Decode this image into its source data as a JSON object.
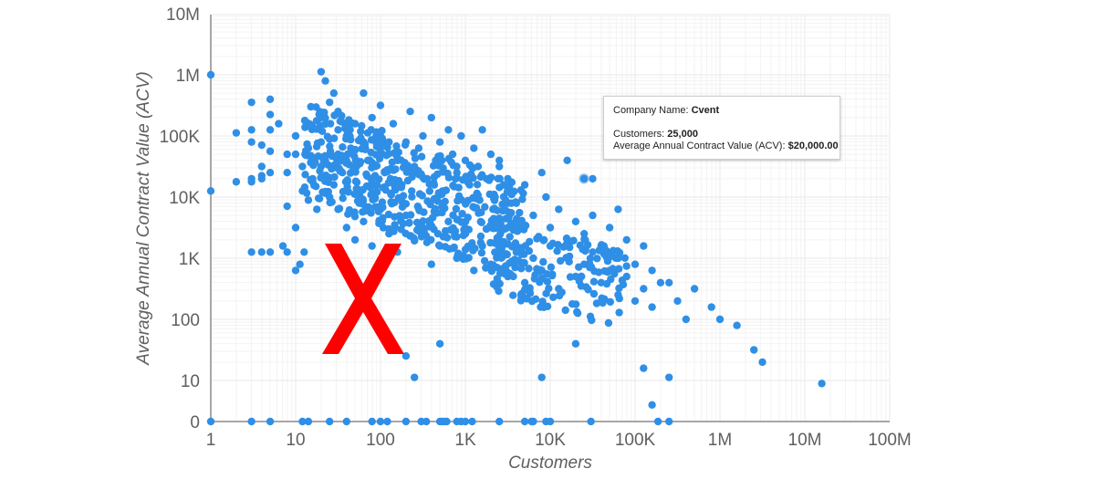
{
  "chart_data": {
    "type": "scatter",
    "title": "",
    "xlabel": "Customers",
    "ylabel": "Average Annual Contract Value (ACV)",
    "x_scale": "log",
    "y_scale": "log",
    "x_ticks": [
      "1",
      "10",
      "100",
      "1K",
      "10K",
      "100K",
      "1M",
      "10M",
      "100M"
    ],
    "y_ticks": [
      "0",
      "10",
      "100",
      "1K",
      "10K",
      "100K",
      "1M",
      "10M"
    ],
    "xlim": [
      1,
      100000000
    ],
    "ylim": [
      0,
      10000000
    ],
    "grid": true,
    "legend": null,
    "point_color": "#2f8fe6",
    "highlight_point": {
      "company": "Cvent",
      "customers": 25000,
      "acv": 20000
    },
    "points_log": [
      [
        0,
        6
      ],
      [
        0,
        4.1
      ],
      [
        0,
        0
      ],
      [
        0.48,
        0
      ],
      [
        0.7,
        0
      ],
      [
        1.08,
        0
      ],
      [
        1.15,
        0
      ],
      [
        1.4,
        0
      ],
      [
        1.6,
        0
      ],
      [
        1.9,
        0
      ],
      [
        2.0,
        0
      ],
      [
        2.08,
        0
      ],
      [
        2.3,
        0
      ],
      [
        2.48,
        0
      ],
      [
        2.54,
        0
      ],
      [
        2.7,
        0
      ],
      [
        2.72,
        0
      ],
      [
        2.75,
        0
      ],
      [
        2.78,
        0
      ],
      [
        2.9,
        0
      ],
      [
        2.95,
        0
      ],
      [
        3.0,
        0
      ],
      [
        3.08,
        0
      ],
      [
        3.4,
        0
      ],
      [
        3.7,
        0
      ],
      [
        3.78,
        0
      ],
      [
        3.8,
        0
      ],
      [
        3.95,
        0
      ],
      [
        4.0,
        0
      ],
      [
        4.48,
        0
      ],
      [
        5.27,
        0
      ],
      [
        5.4,
        0
      ],
      [
        0.3,
        5.05
      ],
      [
        0.48,
        5.55
      ],
      [
        0.48,
        5.1
      ],
      [
        0.48,
        4.9
      ],
      [
        0.6,
        4.85
      ],
      [
        0.6,
        4.5
      ],
      [
        0.6,
        4.35
      ],
      [
        0.6,
        4.3
      ],
      [
        0.7,
        5.6
      ],
      [
        0.7,
        5.35
      ],
      [
        0.7,
        5.1
      ],
      [
        0.7,
        4.75
      ],
      [
        0.7,
        4.4
      ],
      [
        0.8,
        5.2
      ],
      [
        0.9,
        4.7
      ],
      [
        0.9,
        4.4
      ],
      [
        0.9,
        3.85
      ],
      [
        1.0,
        5.0
      ],
      [
        1.0,
        4.7
      ],
      [
        1.0,
        3.5
      ],
      [
        1.08,
        4.5
      ],
      [
        1.08,
        4.1
      ],
      [
        1.15,
        5.2
      ],
      [
        1.15,
        4.8
      ],
      [
        1.15,
        3.95
      ],
      [
        0.48,
        3.1
      ],
      [
        0.6,
        3.1
      ],
      [
        0.7,
        3.1
      ],
      [
        0.85,
        3.2
      ],
      [
        0.9,
        3.1
      ],
      [
        1.0,
        2.8
      ],
      [
        1.05,
        2.9
      ],
      [
        1.1,
        3.1
      ],
      [
        0.3,
        4.25
      ],
      [
        0.48,
        4.3
      ],
      [
        0.48,
        4.25
      ],
      [
        1.2,
        4.3
      ],
      [
        1.25,
        3.8
      ],
      [
        1.3,
        6.05
      ],
      [
        1.35,
        5.9
      ],
      [
        1.4,
        5.55
      ],
      [
        1.45,
        5.7
      ],
      [
        1.3,
        5.3
      ],
      [
        1.3,
        4.9
      ],
      [
        1.3,
        4.5
      ],
      [
        1.35,
        4.6
      ],
      [
        1.4,
        4.0
      ],
      [
        1.4,
        4.95
      ],
      [
        1.45,
        4.2
      ],
      [
        1.5,
        5.4
      ],
      [
        1.5,
        5.1
      ],
      [
        1.5,
        4.7
      ],
      [
        1.55,
        4.4
      ],
      [
        1.6,
        5.0
      ],
      [
        1.6,
        4.6
      ],
      [
        1.6,
        4.1
      ],
      [
        1.65,
        4.8
      ],
      [
        1.7,
        5.2
      ],
      [
        1.7,
        4.5
      ],
      [
        1.75,
        3.9
      ],
      [
        1.8,
        4.9
      ],
      [
        1.8,
        5.7
      ],
      [
        1.85,
        4.6
      ],
      [
        1.9,
        5.3
      ],
      [
        1.9,
        4.3
      ],
      [
        1.95,
        5.0
      ],
      [
        2.0,
        4.7
      ],
      [
        2.0,
        5.5
      ],
      [
        2.05,
        4.4
      ],
      [
        2.1,
        4.9
      ],
      [
        2.15,
        5.2
      ],
      [
        2.2,
        4.6
      ],
      [
        2.25,
        4.2
      ],
      [
        2.3,
        4.9
      ],
      [
        2.35,
        5.4
      ],
      [
        2.4,
        4.5
      ],
      [
        2.45,
        4.8
      ],
      [
        2.5,
        5.0
      ],
      [
        2.55,
        4.3
      ],
      [
        2.6,
        5.3
      ],
      [
        2.65,
        4.6
      ],
      [
        2.7,
        4.9
      ],
      [
        2.75,
        4.1
      ],
      [
        2.8,
        5.1
      ],
      [
        2.85,
        4.7
      ],
      [
        2.9,
        4.4
      ],
      [
        2.95,
        5.0
      ],
      [
        3.0,
        4.6
      ],
      [
        3.05,
        4.2
      ],
      [
        3.1,
        4.8
      ],
      [
        3.15,
        4.5
      ],
      [
        3.2,
        5.1
      ],
      [
        3.25,
        4.3
      ],
      [
        3.3,
        4.7
      ],
      [
        3.35,
        4.0
      ],
      [
        3.4,
        4.6
      ],
      [
        3.45,
        4.2
      ],
      [
        3.5,
        3.9
      ],
      [
        1.5,
        3.8
      ],
      [
        1.6,
        3.5
      ],
      [
        1.7,
        3.3
      ],
      [
        1.8,
        3.6
      ],
      [
        1.9,
        3.2
      ],
      [
        2.0,
        3.8
      ],
      [
        2.1,
        3.4
      ],
      [
        2.2,
        3.1
      ],
      [
        2.3,
        3.7
      ],
      [
        2.4,
        3.3
      ],
      [
        2.5,
        3.5
      ],
      [
        2.6,
        2.9
      ],
      [
        2.7,
        3.2
      ],
      [
        2.8,
        3.6
      ],
      [
        2.9,
        3.0
      ],
      [
        3.0,
        3.4
      ],
      [
        3.1,
        2.8
      ],
      [
        3.2,
        3.2
      ],
      [
        3.3,
        2.9
      ],
      [
        3.4,
        3.3
      ],
      [
        3.5,
        2.7
      ],
      [
        3.6,
        3.1
      ],
      [
        3.7,
        2.6
      ],
      [
        3.8,
        3.0
      ],
      [
        3.9,
        2.8
      ],
      [
        4.0,
        3.2
      ],
      [
        4.1,
        2.5
      ],
      [
        4.2,
        3.0
      ],
      [
        4.3,
        2.7
      ],
      [
        4.4,
        2.9
      ],
      [
        4.5,
        3.1
      ],
      [
        4.6,
        2.6
      ],
      [
        4.7,
        2.8
      ],
      [
        4.8,
        2.4
      ],
      [
        4.9,
        2.7
      ],
      [
        5.0,
        2.3
      ],
      [
        5.1,
        2.5
      ],
      [
        5.2,
        2.2
      ],
      [
        5.4,
        2.6
      ],
      [
        5.5,
        2.3
      ],
      [
        5.6,
        2.0
      ],
      [
        5.7,
        2.5
      ],
      [
        5.9,
        2.2
      ],
      [
        6.0,
        2.0
      ],
      [
        6.2,
        1.9
      ],
      [
        6.4,
        1.5
      ],
      [
        6.5,
        1.3
      ],
      [
        7.2,
        0.95
      ],
      [
        3.4,
        4.5
      ],
      [
        3.5,
        4.3
      ],
      [
        3.6,
        3.9
      ],
      [
        3.7,
        4.2
      ],
      [
        3.8,
        3.7
      ],
      [
        3.9,
        4.4
      ],
      [
        4.0,
        3.5
      ],
      [
        4.1,
        3.8
      ],
      [
        4.2,
        3.3
      ],
      [
        4.3,
        3.6
      ],
      [
        4.4,
        3.4
      ],
      [
        4.5,
        3.7
      ],
      [
        4.6,
        3.2
      ],
      [
        4.7,
        3.5
      ],
      [
        4.8,
        3.0
      ],
      [
        4.9,
        3.3
      ],
      [
        5.0,
        2.9
      ],
      [
        5.1,
        3.2
      ],
      [
        5.2,
        2.8
      ],
      [
        5.3,
        2.6
      ],
      [
        4.5,
        4.3
      ],
      [
        4.8,
        3.8
      ],
      [
        4.2,
        4.6
      ],
      [
        3.95,
        4.0
      ],
      [
        2.3,
        1.4
      ],
      [
        2.4,
        1.05
      ],
      [
        2.7,
        1.6
      ],
      [
        3.9,
        1.05
      ],
      [
        4.3,
        1.6
      ],
      [
        5.1,
        1.2
      ],
      [
        5.2,
        0.6
      ],
      [
        5.4,
        1.05
      ]
    ]
  },
  "tooltip": {
    "company_label": "Company Name: ",
    "company_value": "Cvent",
    "customers_label": "Customers: ",
    "customers_value": "25,000",
    "acv_label": "Average Annual Contract Value (ACV): ",
    "acv_value": "$20,000.00"
  },
  "overlay": {
    "mark": "X",
    "color": "#ff0000"
  }
}
